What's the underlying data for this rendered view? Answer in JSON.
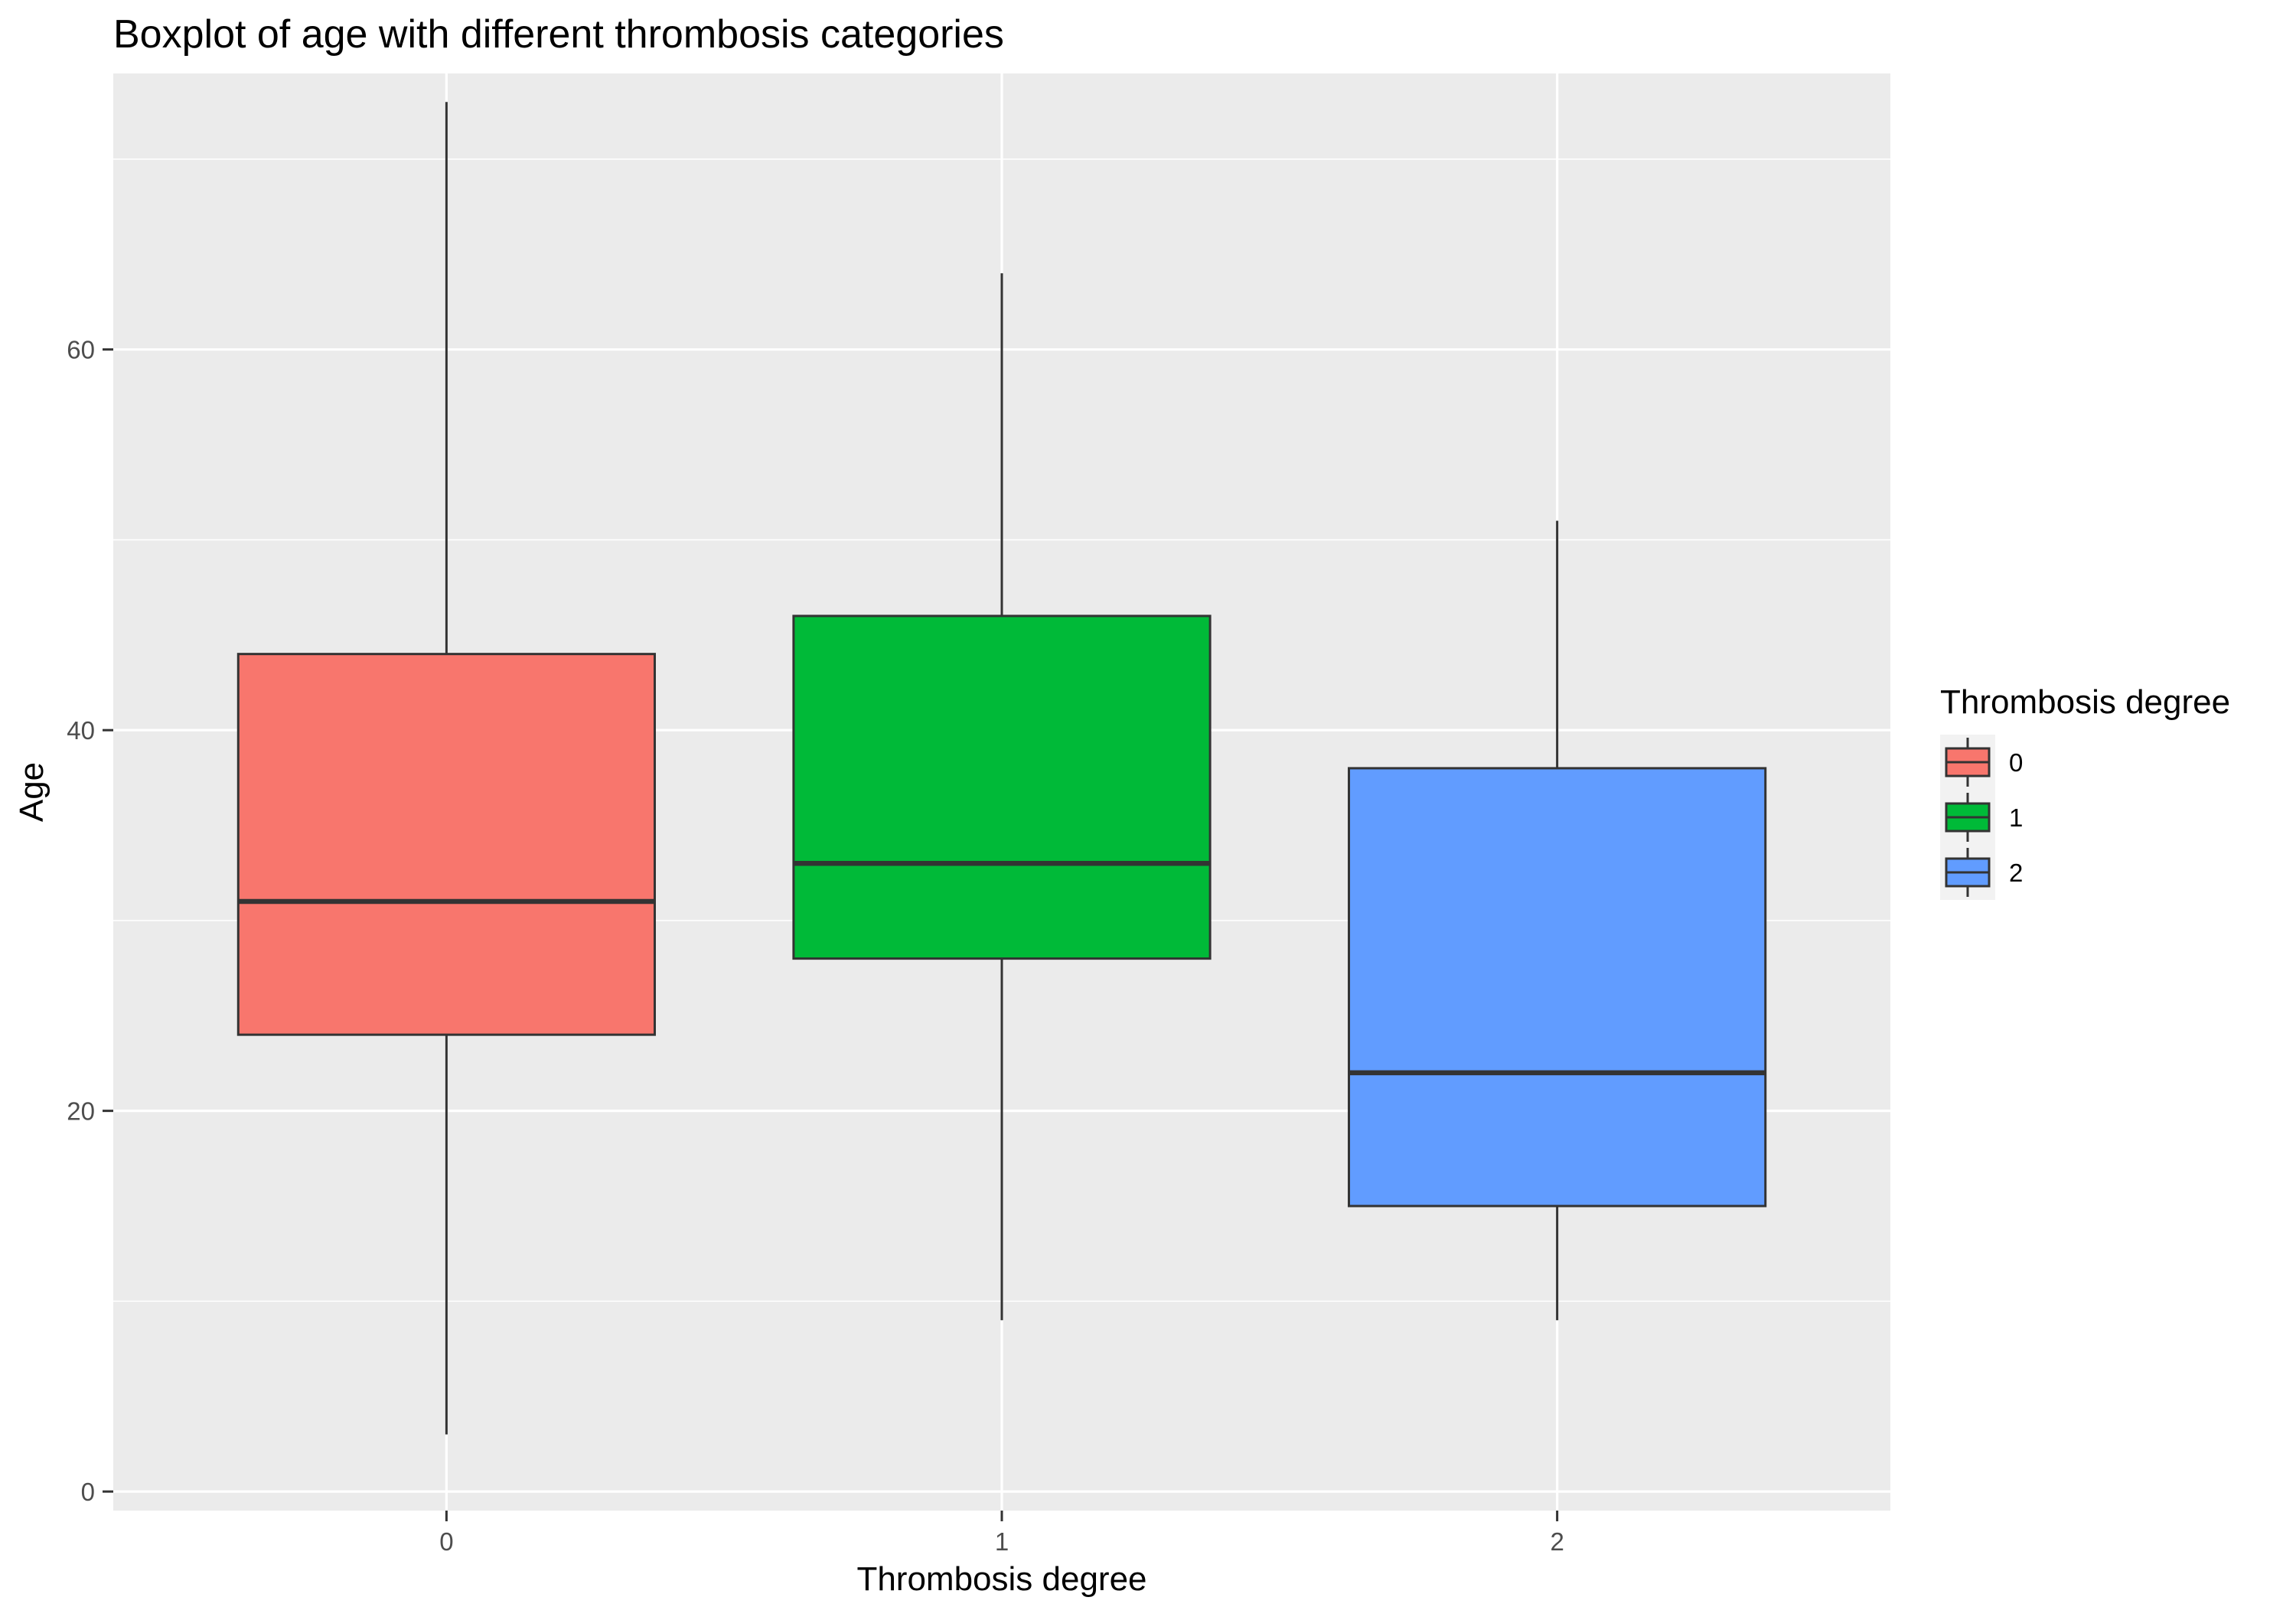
{
  "chart_data": {
    "type": "boxplot",
    "title": "Boxplot of age with different thrombosis categories",
    "xlabel": "Thrombosis degree",
    "ylabel": "Age",
    "categories": [
      "0",
      "1",
      "2"
    ],
    "ylim": [
      -1,
      74.5
    ],
    "y_ticks": [
      0,
      20,
      40,
      60
    ],
    "y_minor_ticks": [
      10,
      30,
      50,
      70
    ],
    "grid": true,
    "legend": {
      "title": "Thrombosis degree",
      "placement": "right",
      "entries": [
        "0",
        "1",
        "2"
      ]
    },
    "colors": [
      "#F8766D",
      "#00BA38",
      "#619CFF"
    ],
    "boxes": [
      {
        "category": "0",
        "min": 3,
        "q1": 24,
        "median": 31,
        "q3": 44,
        "max": 73
      },
      {
        "category": "1",
        "min": 9,
        "q1": 28,
        "median": 33,
        "q3": 46,
        "max": 64
      },
      {
        "category": "2",
        "min": 9,
        "q1": 15,
        "median": 22,
        "q3": 38,
        "max": 51
      }
    ]
  }
}
